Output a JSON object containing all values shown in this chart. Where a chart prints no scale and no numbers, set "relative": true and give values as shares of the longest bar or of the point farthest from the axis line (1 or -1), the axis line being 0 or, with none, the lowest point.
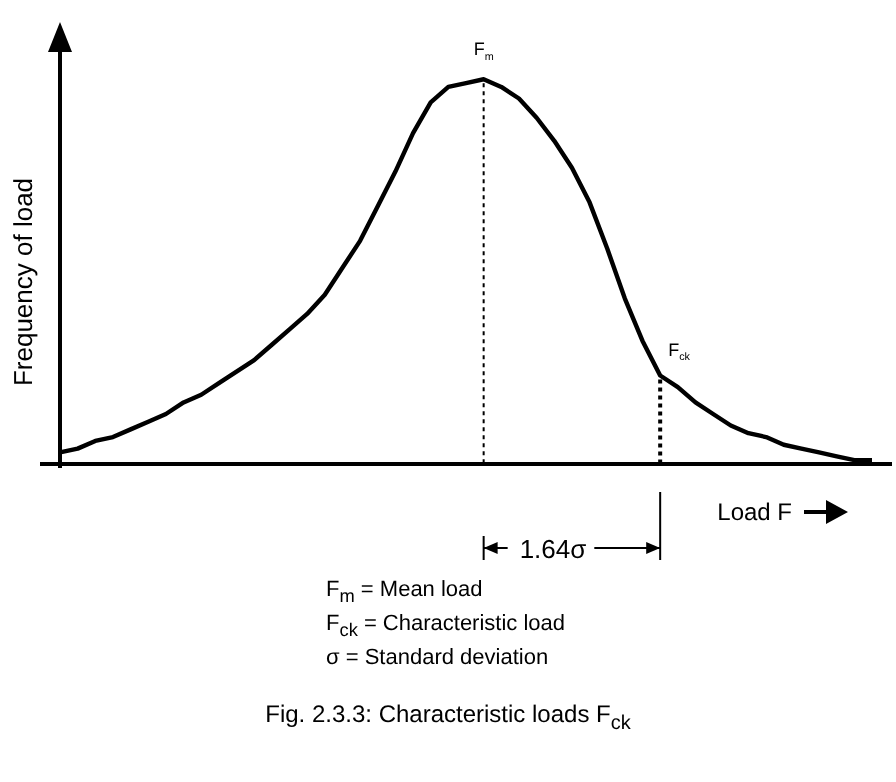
{
  "chart_data": {
    "type": "line",
    "relative": true,
    "ylabel": "Frequency of load",
    "xlabel": "Load F",
    "title": "Fig. 2.3.3: Characteristic loads F$_{ck}$",
    "categories": [
      null,
      null,
      null,
      null,
      null,
      null,
      null,
      null,
      null,
      null,
      null,
      null,
      null,
      null,
      null,
      null,
      null,
      null,
      null,
      null,
      null,
      null,
      null,
      null,
      null,
      null,
      null,
      null,
      null,
      null,
      null,
      null,
      null,
      null,
      null,
      null,
      null,
      null,
      null,
      null,
      null,
      null,
      null,
      null,
      null,
      null,
      null
    ],
    "series": [
      {
        "color": "#000000",
        "values": [
          0.03,
          0.04,
          0.06,
          0.07,
          0.09,
          0.11,
          0.13,
          0.16,
          0.18,
          0.21,
          0.24,
          0.27,
          0.31,
          0.35,
          0.39,
          0.44,
          0.51,
          0.58,
          0.67,
          0.76,
          0.86,
          0.94,
          0.98,
          0.99,
          1.0,
          0.98,
          0.95,
          0.9,
          0.84,
          0.77,
          0.68,
          0.56,
          0.43,
          0.32,
          0.23,
          0.2,
          0.16,
          0.13,
          0.1,
          0.08,
          0.07,
          0.05,
          0.04,
          0.03,
          0.02,
          0.01,
          0.01
        ]
      }
    ],
    "annotations": [
      "F$_{m}$",
      "F$_{ck}$",
      "1.64σ",
      "F$_{m}$ = Mean load",
      "F$_{ck}$ = Characteristic load",
      "σ = Standard deviation"
    ],
    "grid": false,
    "legend": false,
    "marker": "none",
    "line_style": "solid"
  }
}
